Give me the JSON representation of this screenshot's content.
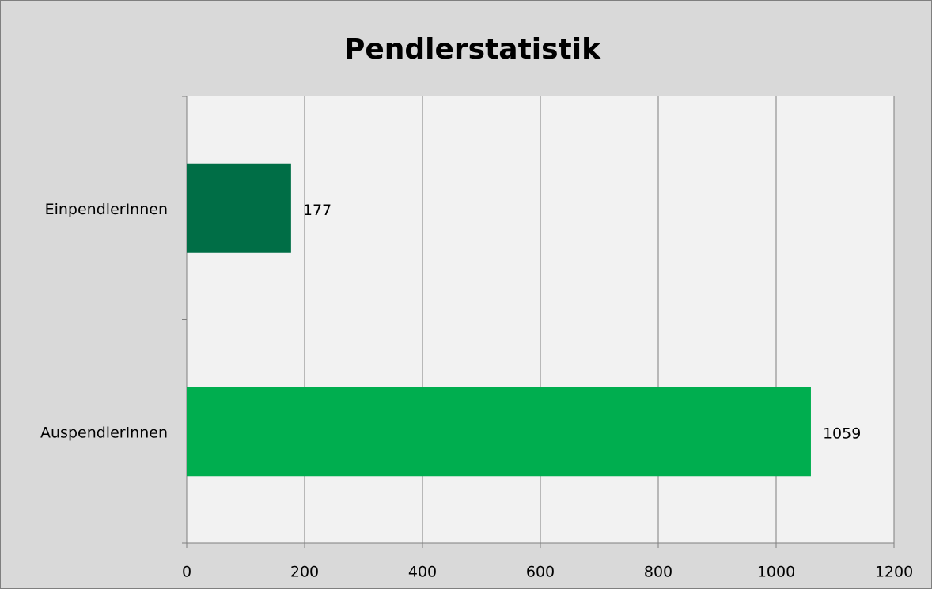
{
  "chart_data": {
    "type": "barh",
    "title": "Pendlerstatistik",
    "categories": [
      "EinpendlerInnen",
      "AuspendlerInnen"
    ],
    "values": [
      177,
      1059
    ],
    "colors": [
      "#006e46",
      "#00ae4f"
    ],
    "xlim": [
      0,
      1200
    ],
    "xticks": [
      0,
      200,
      400,
      600,
      800,
      1000,
      1200
    ],
    "grid": true
  }
}
